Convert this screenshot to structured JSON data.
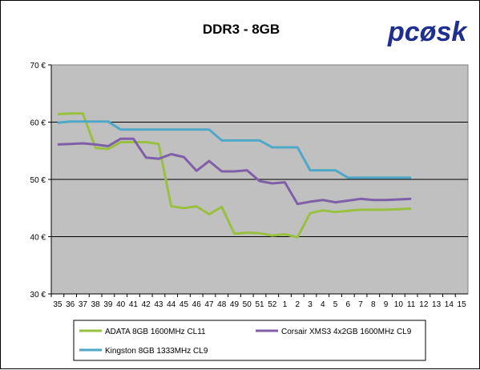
{
  "logo": {
    "text": "pcøsk",
    "colors": {
      "main": "#1f2f8f",
      "flame": "#f4a020"
    }
  },
  "chart_data": {
    "type": "line",
    "title": "DDR3 - 8GB",
    "xlabel": "",
    "ylabel": "",
    "x_categories": [
      "35",
      "36",
      "37",
      "38",
      "39",
      "40",
      "41",
      "42",
      "43",
      "44",
      "45",
      "46",
      "47",
      "48",
      "49",
      "50",
      "51",
      "52",
      "1",
      "2",
      "3",
      "4",
      "5",
      "6",
      "7",
      "8",
      "9",
      "10",
      "11",
      "12",
      "13",
      "14",
      "15"
    ],
    "y_ticks": [
      "30 €",
      "40 €",
      "50 €",
      "60 €",
      "70 €"
    ],
    "y_tick_values": [
      30,
      40,
      50,
      60,
      70
    ],
    "ylim": [
      30,
      70
    ],
    "grid": "horizontal",
    "plot_background": "#c0c0c0",
    "legend_position": "bottom",
    "series": [
      {
        "name": "ADATA 8GB 1600MHz CL11",
        "color": "#99c040",
        "values": [
          61.4,
          61.5,
          61.5,
          55.5,
          55.3,
          56.5,
          56.5,
          56.5,
          56.2,
          45.3,
          45.0,
          45.3,
          43.9,
          45.2,
          40.5,
          40.7,
          40.6,
          40.2,
          40.4,
          39.9,
          44.1,
          44.6,
          44.3,
          44.5,
          44.7,
          44.7,
          44.7,
          44.8,
          44.9,
          null,
          null,
          null,
          null
        ]
      },
      {
        "name": "Corsair XMS3 4x2GB 1600MHz CL9",
        "color": "#7f5fa8",
        "values": [
          56.1,
          56.2,
          56.3,
          56.1,
          55.8,
          57.1,
          57.1,
          53.8,
          53.6,
          54.4,
          53.9,
          51.5,
          53.2,
          51.4,
          51.4,
          51.6,
          49.7,
          49.3,
          49.5,
          45.7,
          46.1,
          46.4,
          46.0,
          46.3,
          46.6,
          46.4,
          46.4,
          46.5,
          46.6,
          null,
          null,
          null,
          null
        ]
      },
      {
        "name": "Kingston 8GB 1333MHz CL9",
        "color": "#4fa8c8",
        "values": [
          59.9,
          60.1,
          60.1,
          60.1,
          60.1,
          58.7,
          58.7,
          58.7,
          58.7,
          58.7,
          58.7,
          58.7,
          58.7,
          56.8,
          56.8,
          56.8,
          56.8,
          55.6,
          55.6,
          55.6,
          51.6,
          51.6,
          51.6,
          50.3,
          50.3,
          50.3,
          50.3,
          50.3,
          50.3,
          null,
          null,
          null,
          null
        ]
      }
    ]
  }
}
